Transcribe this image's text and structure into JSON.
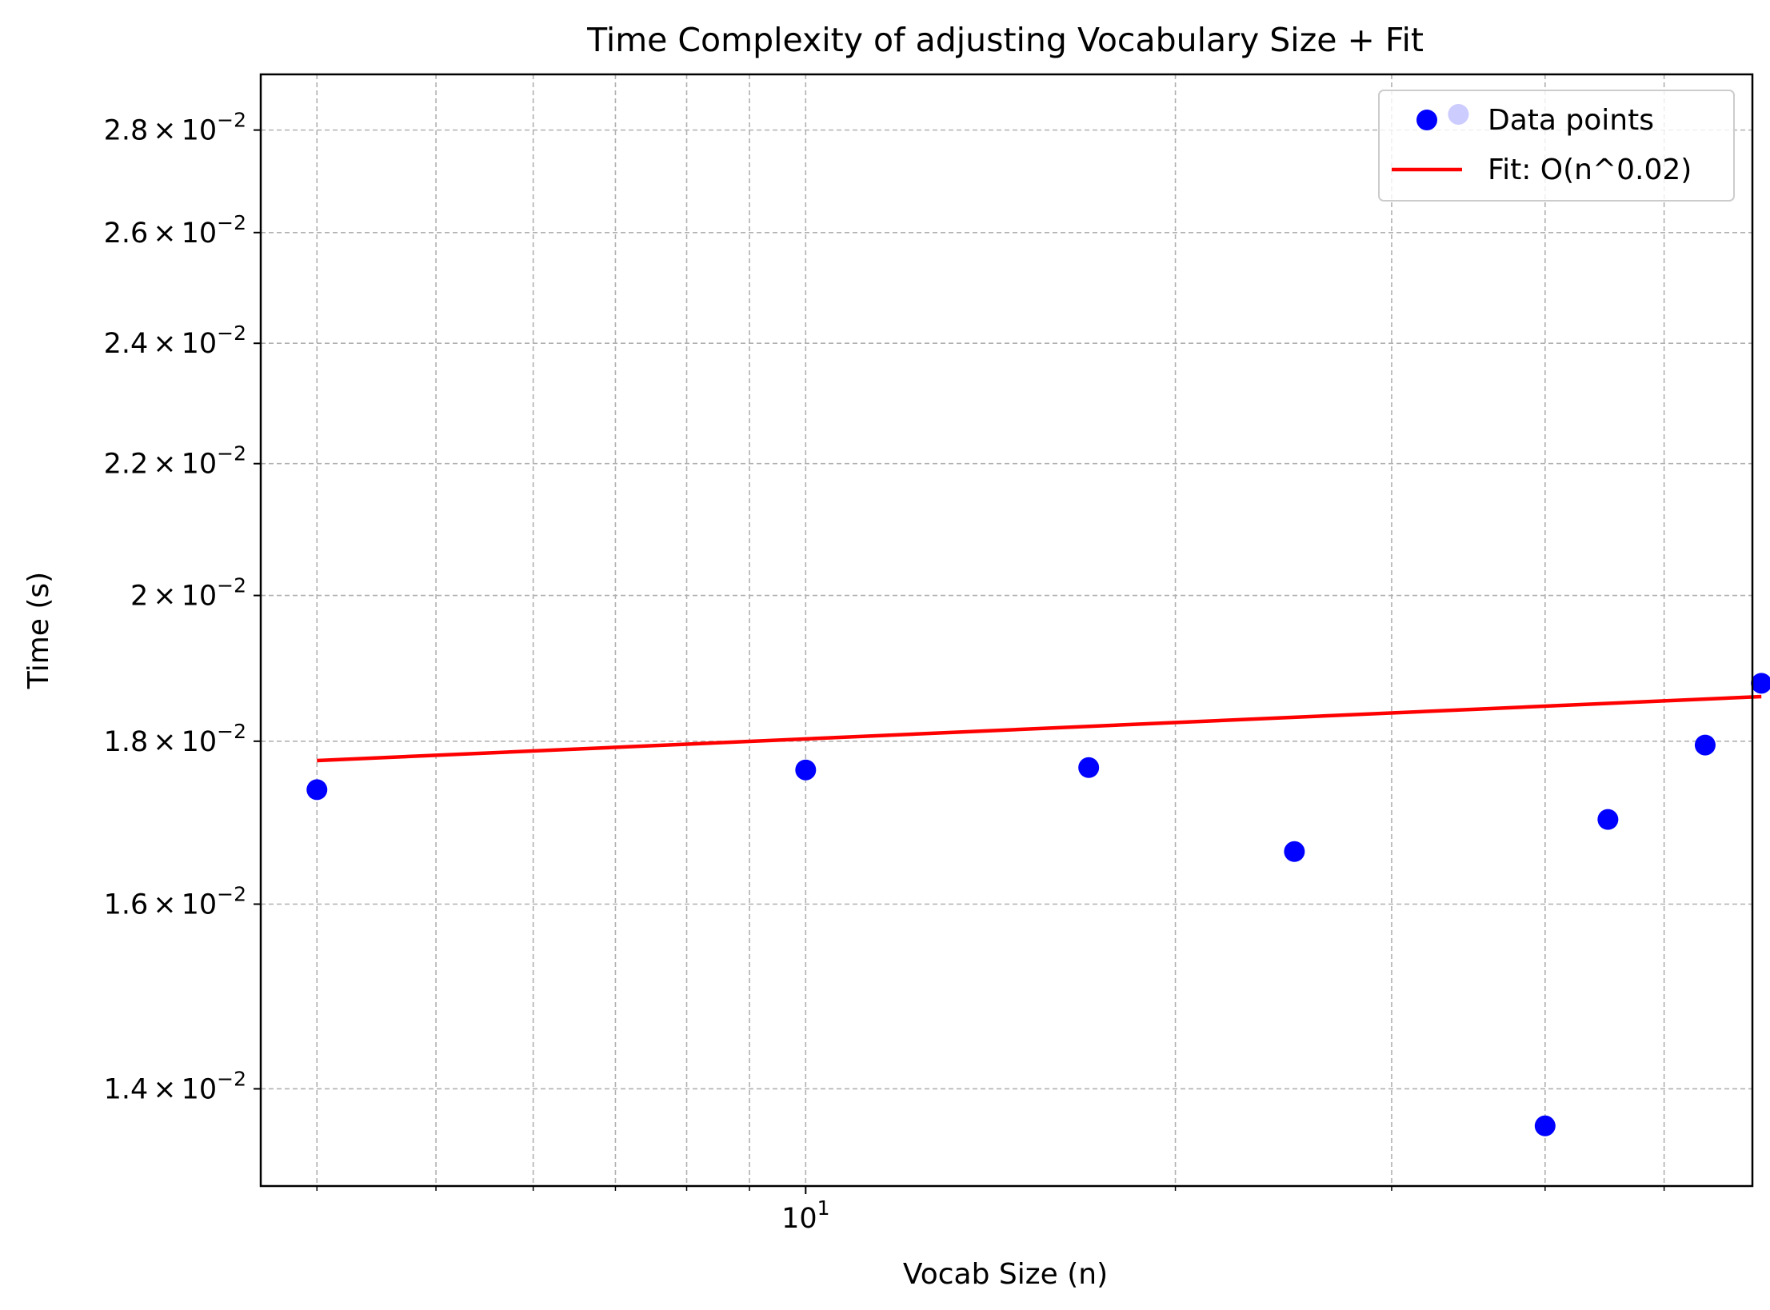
{
  "chart_data": {
    "type": "scatter",
    "title": "Time Complexity of adjusting Vocabulary Size + Fit",
    "xlabel": "Vocab Size (n)",
    "ylabel": "Time (s)",
    "x_scale": "log",
    "y_scale": "log",
    "xlim": [
      3.6,
      59
    ],
    "ylim": [
      0.01305,
      0.02915
    ],
    "x_major_ticks": [
      {
        "value": 10,
        "mantissa": "10",
        "exponent": "1"
      }
    ],
    "x_minor_ticks": [
      4,
      5,
      6,
      7,
      8,
      9,
      20,
      30,
      40,
      50
    ],
    "y_ticks": [
      {
        "value": 0.014,
        "mantissa": "1.4",
        "exponent": "−2"
      },
      {
        "value": 0.016,
        "mantissa": "1.6",
        "exponent": "−2"
      },
      {
        "value": 0.018,
        "mantissa": "1.8",
        "exponent": "−2"
      },
      {
        "value": 0.02,
        "mantissa": "2",
        "exponent": "−2"
      },
      {
        "value": 0.022,
        "mantissa": "2.2",
        "exponent": "−2"
      },
      {
        "value": 0.024,
        "mantissa": "2.4",
        "exponent": "−2"
      },
      {
        "value": 0.026,
        "mantissa": "2.6",
        "exponent": "−2"
      },
      {
        "value": 0.028,
        "mantissa": "2.8",
        "exponent": "−2"
      }
    ],
    "tick_times_symbol": "×",
    "grid": true,
    "legend_position": "top-right",
    "series": [
      {
        "name": "Data points",
        "kind": "scatter",
        "color": "#0000ff",
        "x": [
          4,
          10,
          17,
          25,
          34,
          40,
          45,
          54,
          60
        ],
        "y": [
          0.01738,
          0.01763,
          0.01766,
          0.01662,
          0.02832,
          0.01363,
          0.01701,
          0.01795,
          0.01877
        ]
      },
      {
        "name": "Fit: O(n^0.02)",
        "kind": "line",
        "color": "#ff0000",
        "x": [
          4,
          60
        ],
        "y": [
          0.01775,
          0.01859
        ]
      }
    ]
  }
}
